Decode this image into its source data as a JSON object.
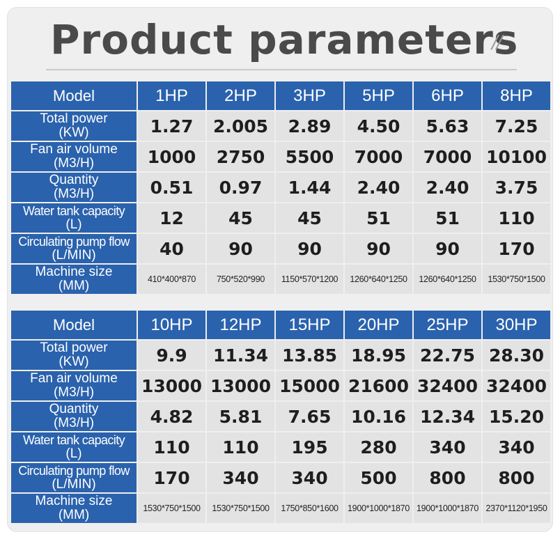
{
  "title": "Product parameters",
  "decoration": "//",
  "tables": [
    {
      "header_label": "Model",
      "models": [
        "1HP",
        "2HP",
        "3HP",
        "5HP",
        "6HP",
        "8HP"
      ],
      "rows": [
        {
          "label1": "Total power",
          "label2": "(KW)",
          "values": [
            "1.27",
            "2.005",
            "2.89",
            "4.50",
            "5.63",
            "7.25"
          ]
        },
        {
          "label1": "Fan air volume",
          "label2": "(M3/H)",
          "values": [
            "1000",
            "2750",
            "5500",
            "7000",
            "7000",
            "10100"
          ]
        },
        {
          "label1": "Quantity",
          "label2": "(M3/H)",
          "values": [
            "0.51",
            "0.97",
            "1.44",
            "2.40",
            "2.40",
            "3.75"
          ]
        },
        {
          "label1": "Water tank capacity",
          "label2": "(L)",
          "values": [
            "12",
            "45",
            "45",
            "51",
            "51",
            "110"
          ]
        },
        {
          "label1": "Circulating pump flow",
          "label2": "(L/MIN)",
          "values": [
            "40",
            "90",
            "90",
            "90",
            "90",
            "170"
          ]
        },
        {
          "label1": "Machine size",
          "label2": "(MM)",
          "values": [
            "410*400*870",
            "750*520*990",
            "1150*570*1200",
            "1260*640*1250",
            "1260*640*1250",
            "1530*750*1500"
          ]
        }
      ]
    },
    {
      "header_label": "Model",
      "models": [
        "10HP",
        "12HP",
        "15HP",
        "20HP",
        "25HP",
        "30HP"
      ],
      "rows": [
        {
          "label1": "Total power",
          "label2": "(KW)",
          "values": [
            "9.9",
            "11.34",
            "13.85",
            "18.95",
            "22.75",
            "28.30"
          ]
        },
        {
          "label1": "Fan air volume",
          "label2": "(M3/H)",
          "values": [
            "13000",
            "13000",
            "15000",
            "21600",
            "32400",
            "32400"
          ]
        },
        {
          "label1": "Quantity",
          "label2": "(M3/H)",
          "values": [
            "4.82",
            "5.81",
            "7.65",
            "10.16",
            "12.34",
            "15.20"
          ]
        },
        {
          "label1": "Water tank capacity",
          "label2": "(L)",
          "values": [
            "110",
            "110",
            "195",
            "280",
            "340",
            "340"
          ]
        },
        {
          "label1": "Circulating pump flow",
          "label2": "(L/MIN)",
          "values": [
            "170",
            "340",
            "340",
            "500",
            "800",
            "800"
          ]
        },
        {
          "label1": "Machine size",
          "label2": "(MM)",
          "values": [
            "1530*750*1500",
            "1530*750*1500",
            "1750*850*1600",
            "1900*1000*1870",
            "1900*1000*1870",
            "2370*1120*1950"
          ]
        }
      ]
    }
  ],
  "colors": {
    "header_blue": "#2a62ad",
    "cell_gray": "#e3e3e3",
    "title_gray": "#4a4a4a"
  }
}
